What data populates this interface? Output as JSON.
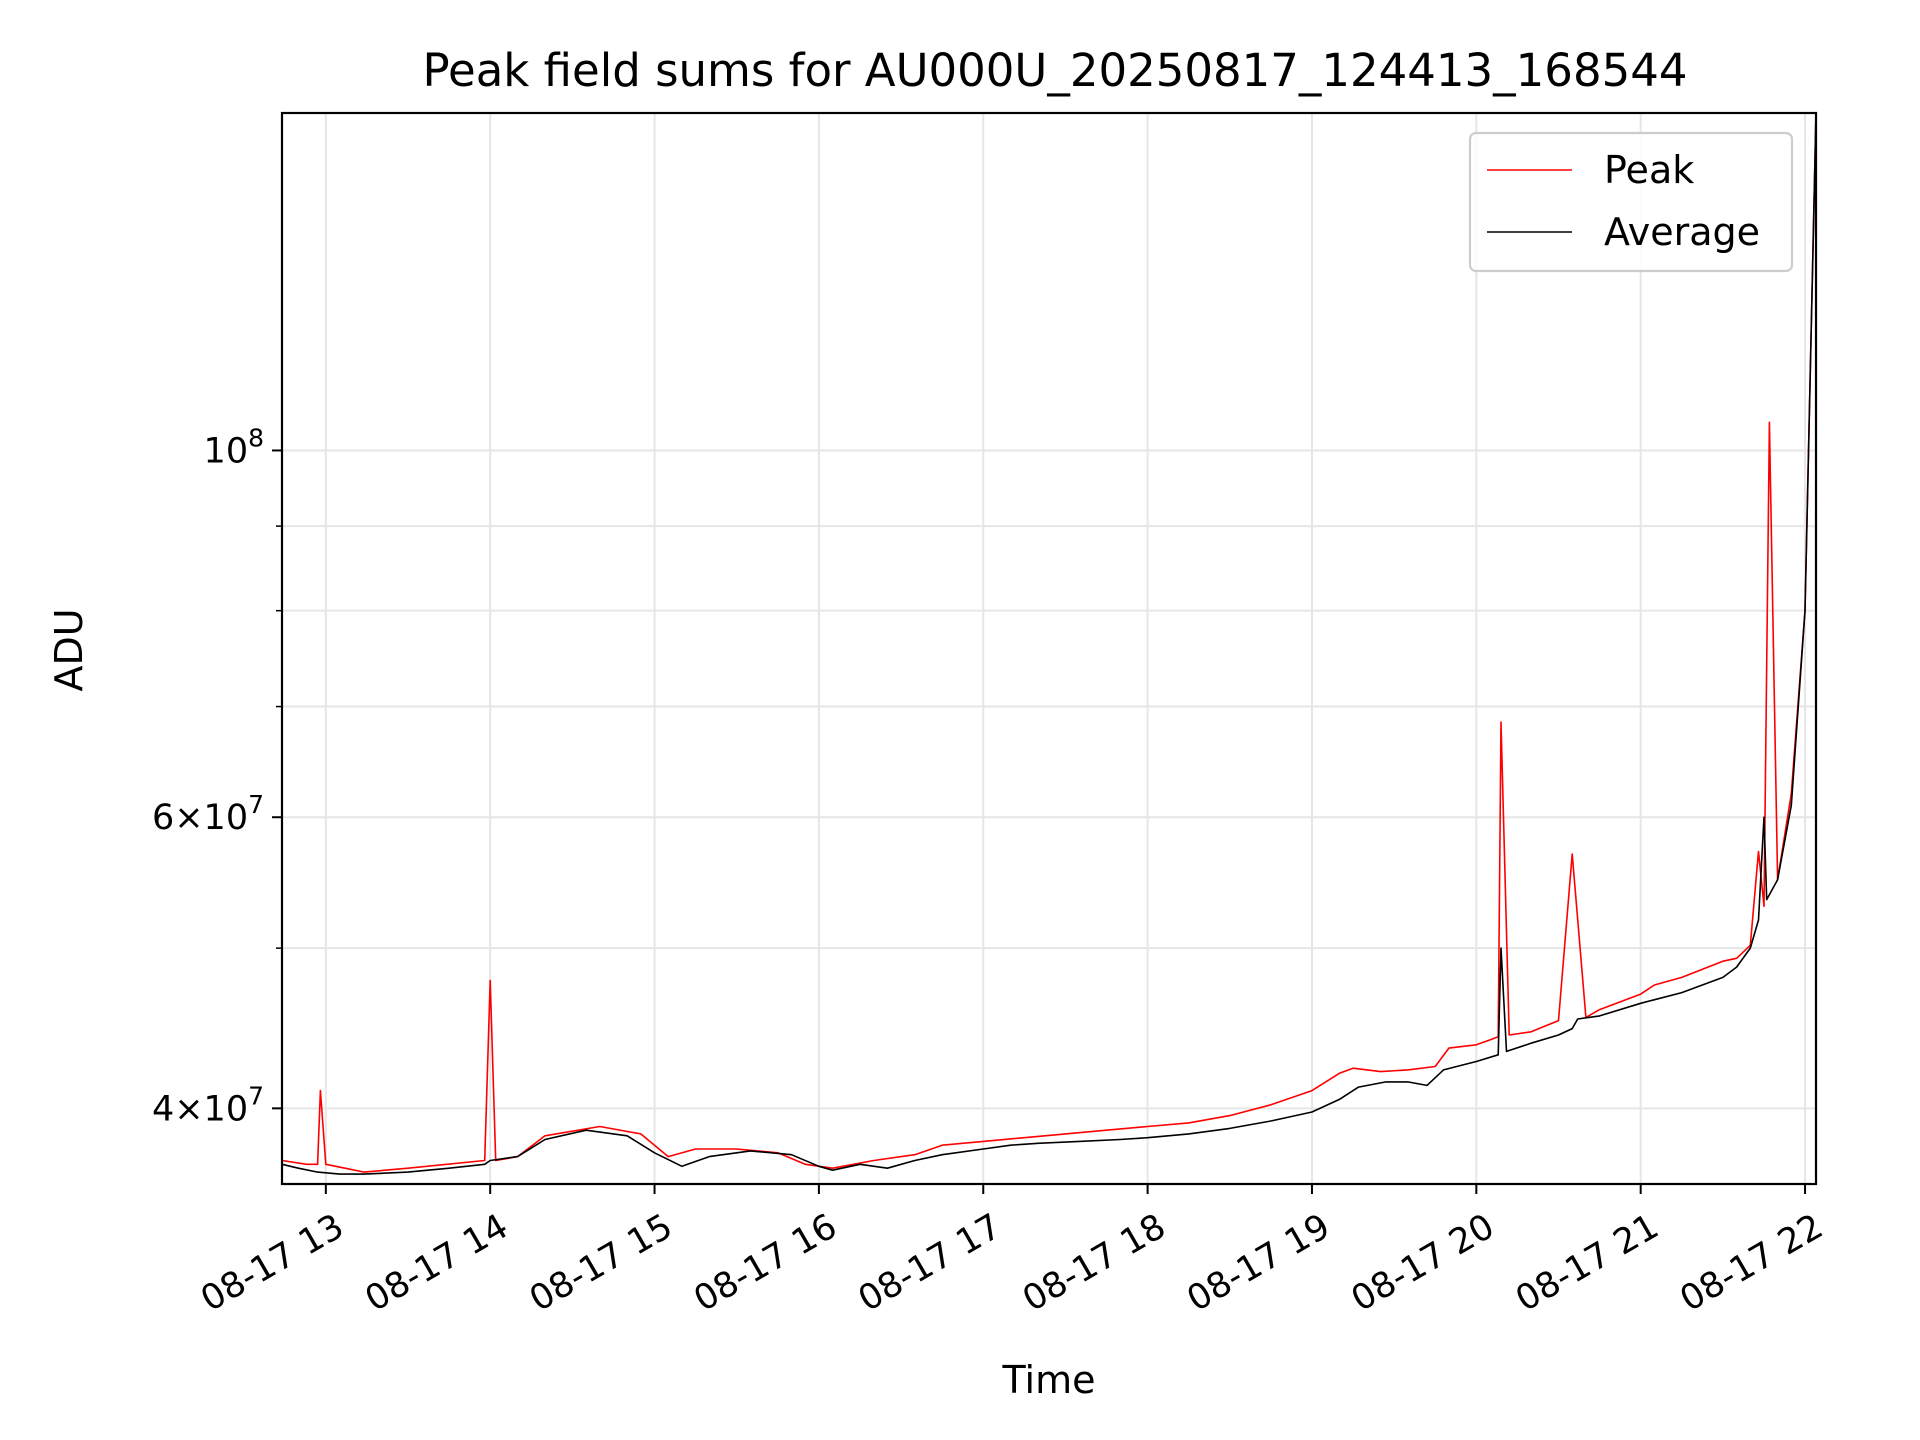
{
  "chart_data": {
    "type": "line",
    "title": "Peak field sums for AU000U_20250817_124413_168544",
    "xlabel": "Time",
    "ylabel": "ADU",
    "yscale": "log",
    "xlim": [
      "2025-08-17 12:44",
      "2025-08-17 22:04"
    ],
    "ylim": [
      36000000,
      160000000
    ],
    "grid": true,
    "legend": {
      "placement": "top-right"
    },
    "x_ticks": [
      "08-17 13",
      "08-17 14",
      "08-17 15",
      "08-17 16",
      "08-17 17",
      "08-17 18",
      "08-17 19",
      "08-17 20",
      "08-17 21",
      "08-17 22"
    ],
    "y_ticks": [
      {
        "value": 40000000,
        "base": "4",
        "exp": "7"
      },
      {
        "value": 60000000,
        "base": "6",
        "exp": "7"
      },
      {
        "value": 100000000,
        "base": "",
        "exp": "8"
      }
    ],
    "y_minor_ticks": [
      50000000,
      70000000,
      80000000,
      90000000
    ],
    "series": [
      {
        "name": "Peak",
        "color": "#ff0000",
        "x": [
          "12:44",
          "12:53",
          "12:57",
          "12:58",
          "13:00",
          "13:07",
          "13:14",
          "13:30",
          "13:58",
          "14:00",
          "14:02",
          "14:10",
          "14:20",
          "14:40",
          "14:55",
          "15:05",
          "15:15",
          "15:30",
          "15:45",
          "15:55",
          "16:05",
          "16:20",
          "16:35",
          "16:45",
          "17:00",
          "17:15",
          "17:30",
          "17:45",
          "18:00",
          "18:15",
          "18:30",
          "18:45",
          "19:00",
          "19:10",
          "19:15",
          "19:25",
          "19:35",
          "19:45",
          "19:50",
          "20:00",
          "20:05",
          "20:08",
          "20:09",
          "20:12",
          "20:20",
          "20:30",
          "20:35",
          "20:40",
          "20:45",
          "21:00",
          "21:05",
          "21:15",
          "21:30",
          "21:35",
          "21:40",
          "21:43",
          "21:45",
          "21:47",
          "21:50",
          "21:55",
          "22:00",
          "22:04"
        ],
        "y": [
          37200000,
          37000000,
          37000000,
          41000000,
          37000000,
          36800000,
          36600000,
          36800000,
          37200000,
          47800000,
          37200000,
          37400000,
          38500000,
          39000000,
          38600000,
          37400000,
          37800000,
          37800000,
          37600000,
          37000000,
          36800000,
          37200000,
          37500000,
          38000000,
          38200000,
          38400000,
          38600000,
          38800000,
          39000000,
          39200000,
          39600000,
          40200000,
          41000000,
          42000000,
          42300000,
          42100000,
          42200000,
          42400000,
          43500000,
          43700000,
          44000000,
          44200000,
          68500000,
          44300000,
          44500000,
          45200000,
          57000000,
          45400000,
          45900000,
          46900000,
          47500000,
          48000000,
          49100000,
          49300000,
          50200000,
          57200000,
          53000000,
          104000000,
          55000000,
          62000000,
          80000000,
          160000000
        ]
      },
      {
        "name": "Average",
        "color": "#000000",
        "x": [
          "12:44",
          "12:50",
          "12:57",
          "13:05",
          "13:14",
          "13:30",
          "13:45",
          "13:58",
          "14:00",
          "14:10",
          "14:20",
          "14:35",
          "14:50",
          "15:00",
          "15:10",
          "15:20",
          "15:35",
          "15:50",
          "16:00",
          "16:05",
          "16:15",
          "16:25",
          "16:35",
          "16:45",
          "17:00",
          "17:10",
          "17:20",
          "17:35",
          "17:50",
          "18:00",
          "18:15",
          "18:30",
          "18:45",
          "19:00",
          "19:10",
          "19:17",
          "19:27",
          "19:35",
          "19:42",
          "19:48",
          "20:00",
          "20:08",
          "20:09",
          "20:11",
          "20:20",
          "20:30",
          "20:35",
          "20:37",
          "20:45",
          "21:00",
          "21:15",
          "21:30",
          "21:35",
          "21:40",
          "21:43",
          "21:45",
          "21:46",
          "21:50",
          "21:55",
          "22:00",
          "22:04"
        ],
        "y": [
          37000000,
          36800000,
          36600000,
          36500000,
          36500000,
          36600000,
          36800000,
          37000000,
          37200000,
          37400000,
          38300000,
          38800000,
          38500000,
          37600000,
          36900000,
          37400000,
          37700000,
          37500000,
          36900000,
          36700000,
          37000000,
          36800000,
          37200000,
          37500000,
          37800000,
          38000000,
          38100000,
          38200000,
          38300000,
          38400000,
          38600000,
          38900000,
          39300000,
          39800000,
          40500000,
          41200000,
          41500000,
          41500000,
          41300000,
          42200000,
          42700000,
          43100000,
          50000000,
          43300000,
          43800000,
          44300000,
          44700000,
          45300000,
          45500000,
          46300000,
          47000000,
          48000000,
          48700000,
          50000000,
          52000000,
          60000000,
          53500000,
          55000000,
          61000000,
          80000000,
          160000000
        ]
      }
    ]
  }
}
